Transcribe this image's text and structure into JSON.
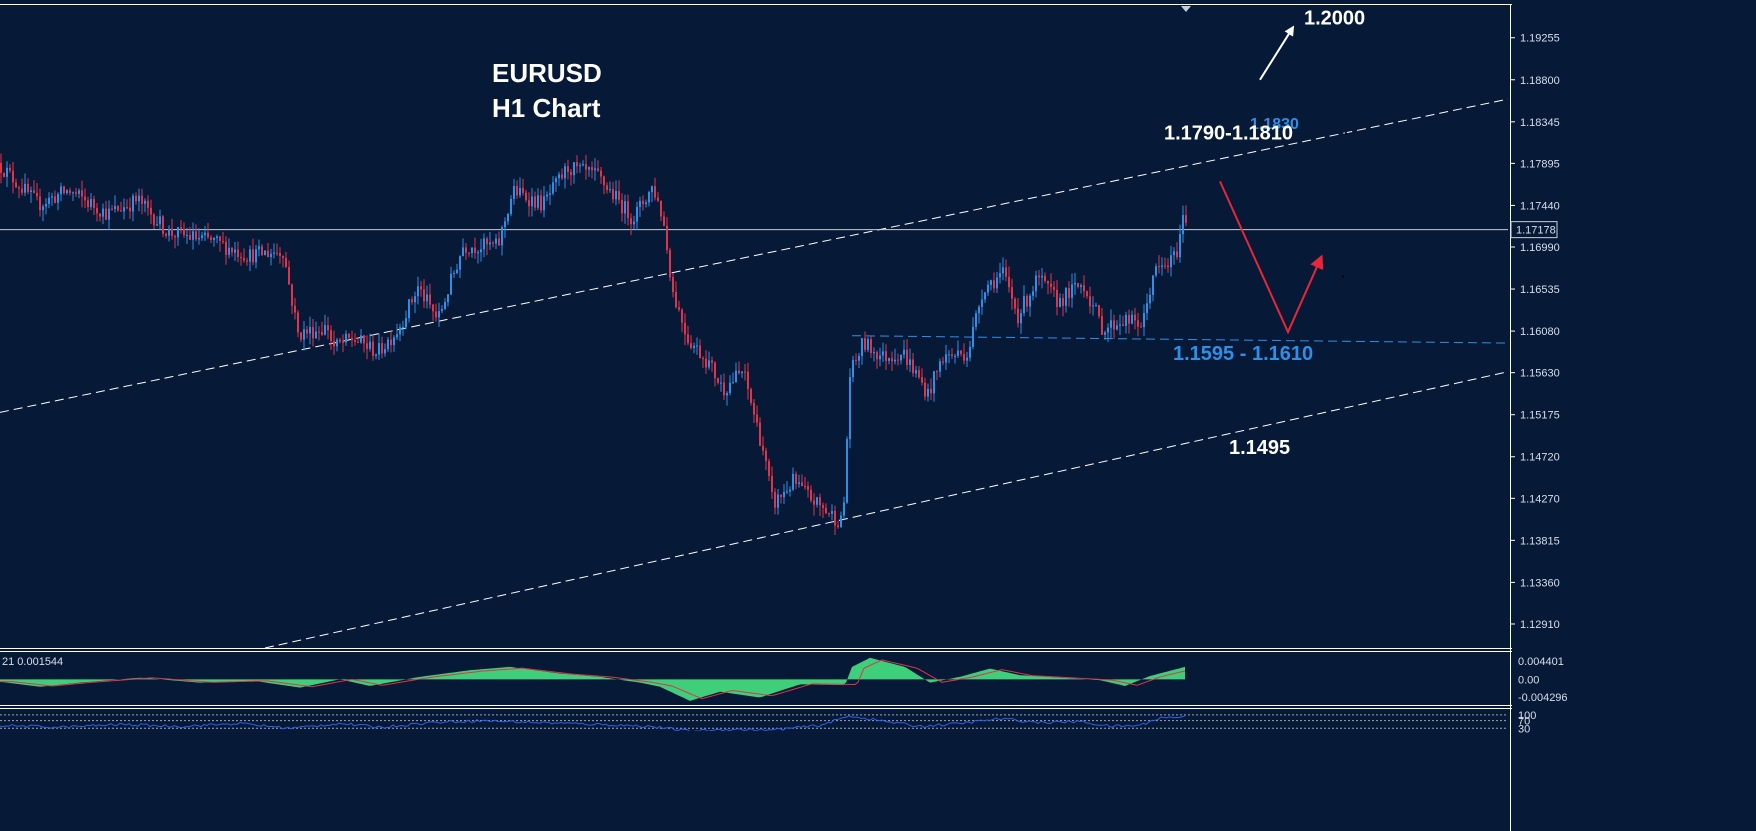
{
  "chart_data": [
    {
      "type": "candlestick",
      "title": "EURUSD",
      "subtitle": "H1 Chart",
      "ylim": [
        1.1265,
        1.1962
      ],
      "y_ticks": [
        "1.19255",
        "1.18800",
        "1.18345",
        "1.17895",
        "1.17440",
        "1.16990",
        "1.16535",
        "1.16080",
        "1.15630",
        "1.15175",
        "1.14720",
        "1.14270",
        "1.13815",
        "1.13360",
        "1.12910"
      ],
      "y_tick_values": [
        1.19255,
        1.188,
        1.18345,
        1.17895,
        1.1744,
        1.1699,
        1.16535,
        1.1608,
        1.1563,
        1.15175,
        1.1472,
        1.1427,
        1.13815,
        1.1336,
        1.1291
      ],
      "current_price": 1.17178,
      "current_price_label": "1.17178",
      "price_path_keypoints": [
        [
          0,
          1.179
        ],
        [
          40,
          1.1745
        ],
        [
          70,
          1.176
        ],
        [
          110,
          1.1735
        ],
        [
          140,
          1.175
        ],
        [
          170,
          1.1715
        ],
        [
          215,
          1.1705
        ],
        [
          250,
          1.169
        ],
        [
          285,
          1.1695
        ],
        [
          300,
          1.1605
        ],
        [
          330,
          1.1612
        ],
        [
          335,
          1.159
        ],
        [
          355,
          1.16
        ],
        [
          380,
          1.1585
        ],
        [
          400,
          1.161
        ],
        [
          420,
          1.1655
        ],
        [
          440,
          1.162
        ],
        [
          465,
          1.17
        ],
        [
          500,
          1.17
        ],
        [
          515,
          1.176
        ],
        [
          545,
          1.1745
        ],
        [
          570,
          1.1785
        ],
        [
          600,
          1.1775
        ],
        [
          635,
          1.173
        ],
        [
          655,
          1.1765
        ],
        [
          665,
          1.173
        ],
        [
          675,
          1.165
        ],
        [
          690,
          1.16
        ],
        [
          710,
          1.1575
        ],
        [
          725,
          1.1545
        ],
        [
          745,
          1.1565
        ],
        [
          765,
          1.148
        ],
        [
          775,
          1.142
        ],
        [
          795,
          1.1445
        ],
        [
          820,
          1.142
        ],
        [
          845,
          1.14
        ],
        [
          852,
          1.156
        ],
        [
          865,
          1.1595
        ],
        [
          885,
          1.158
        ],
        [
          905,
          1.1585
        ],
        [
          930,
          1.154
        ],
        [
          945,
          1.158
        ],
        [
          970,
          1.1585
        ],
        [
          985,
          1.1655
        ],
        [
          1005,
          1.167
        ],
        [
          1020,
          1.1625
        ],
        [
          1040,
          1.1665
        ],
        [
          1060,
          1.164
        ],
        [
          1085,
          1.166
        ],
        [
          1105,
          1.161
        ],
        [
          1125,
          1.162
        ],
        [
          1145,
          1.1615
        ],
        [
          1155,
          1.167
        ],
        [
          1170,
          1.168
        ],
        [
          1178,
          1.169
        ],
        [
          1185,
          1.173
        ]
      ],
      "annotations": [
        {
          "text": "1.2000",
          "style": "white",
          "price": 1.194
        },
        {
          "text": "1.1830",
          "style": "blue-small",
          "price": 1.183
        },
        {
          "text": "1.1790-1.1810",
          "style": "white",
          "price": 1.181
        },
        {
          "text": "1.1595 - 1.1610",
          "style": "blue",
          "price": 1.1595
        },
        {
          "text": "1.1495",
          "style": "white",
          "price": 1.149
        }
      ],
      "channel_upper": [
        [
          0,
          1.152
        ],
        [
          1512,
          1.186
        ]
      ],
      "channel_lower": [
        [
          265,
          1.1265
        ],
        [
          1512,
          1.1565
        ]
      ],
      "support_line": [
        [
          852,
          1.1603
        ],
        [
          1508,
          1.1595
        ]
      ],
      "forecast_path": [
        [
          1220,
          1.177
        ],
        [
          1288,
          1.1607
        ],
        [
          1320,
          1.1685
        ]
      ],
      "breakout_arrow": [
        [
          1260,
          1.188
        ],
        [
          1292,
          1.1935
        ]
      ]
    },
    {
      "type": "histogram",
      "name": "MACD",
      "header": "21 0.001544",
      "ylim": [
        -0.0062,
        0.0066
      ],
      "y_ticks": [
        "0.004401",
        "0.00",
        "-0.004296"
      ],
      "y_tick_values": [
        0.004401,
        0.0,
        -0.004296
      ],
      "hist_keypoints": [
        [
          0,
          -0.0006
        ],
        [
          40,
          -0.0018
        ],
        [
          80,
          -0.0008
        ],
        [
          140,
          0.0004
        ],
        [
          200,
          -0.0008
        ],
        [
          255,
          -0.0004
        ],
        [
          300,
          -0.002
        ],
        [
          340,
          0.0
        ],
        [
          370,
          -0.0016
        ],
        [
          420,
          0.0006
        ],
        [
          470,
          0.0022
        ],
        [
          510,
          0.003
        ],
        [
          560,
          0.0014
        ],
        [
          600,
          0.0006
        ],
        [
          640,
          -0.0008
        ],
        [
          660,
          -0.0018
        ],
        [
          690,
          -0.0052
        ],
        [
          720,
          -0.003
        ],
        [
          760,
          -0.0044
        ],
        [
          800,
          -0.0012
        ],
        [
          845,
          -0.0014
        ],
        [
          852,
          0.003
        ],
        [
          870,
          0.0052
        ],
        [
          905,
          0.003
        ],
        [
          930,
          -0.0008
        ],
        [
          960,
          0.0006
        ],
        [
          990,
          0.0026
        ],
        [
          1020,
          0.001
        ],
        [
          1060,
          0.0004
        ],
        [
          1100,
          -0.0002
        ],
        [
          1125,
          -0.0016
        ],
        [
          1150,
          0.0008
        ],
        [
          1185,
          0.003
        ]
      ]
    },
    {
      "type": "line",
      "name": "oscillator",
      "y_ticks": [
        "100",
        "70",
        "30"
      ],
      "y_tick_values": [
        100,
        70,
        30
      ],
      "ylim": [
        0,
        115
      ],
      "line_keypoints": [
        [
          0,
          45
        ],
        [
          60,
          35
        ],
        [
          120,
          50
        ],
        [
          180,
          40
        ],
        [
          240,
          55
        ],
        [
          290,
          30
        ],
        [
          340,
          55
        ],
        [
          380,
          35
        ],
        [
          430,
          60
        ],
        [
          480,
          70
        ],
        [
          540,
          60
        ],
        [
          600,
          50
        ],
        [
          650,
          40
        ],
        [
          690,
          15
        ],
        [
          730,
          25
        ],
        [
          770,
          20
        ],
        [
          820,
          45
        ],
        [
          850,
          95
        ],
        [
          880,
          70
        ],
        [
          920,
          40
        ],
        [
          960,
          55
        ],
        [
          1000,
          80
        ],
        [
          1040,
          60
        ],
        [
          1080,
          65
        ],
        [
          1110,
          40
        ],
        [
          1140,
          45
        ],
        [
          1160,
          85
        ],
        [
          1185,
          90
        ]
      ]
    }
  ],
  "colors": {
    "background": "#061a38",
    "bull_candle": "#2e8fe6",
    "bear_candle": "#e0344a",
    "channel_line": "#ffffff",
    "support_line": "#2e8fe6",
    "forecast_arrow": "#e8263a",
    "macd_histogram": "#3fcf7a",
    "macd_signal": "#e0344a",
    "oscillator_line": "#2e5fe6"
  }
}
